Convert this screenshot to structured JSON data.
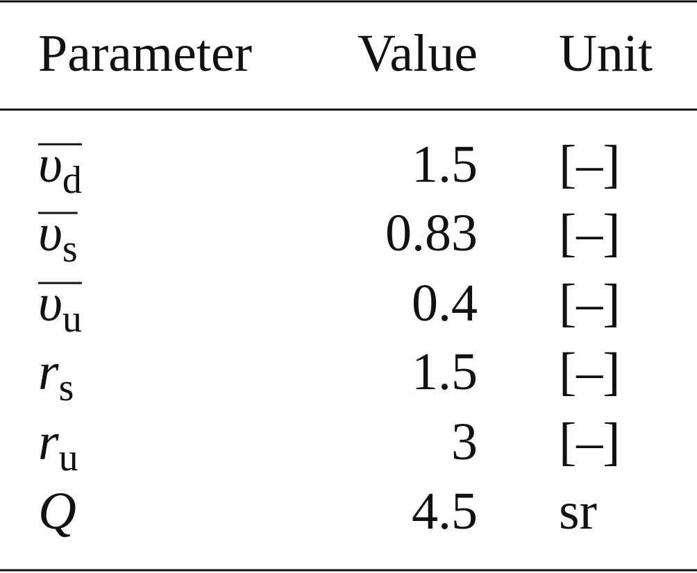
{
  "table": {
    "header": [
      "Parameter",
      "Value",
      "Unit"
    ],
    "rows": [
      [
        {
          "symbol": "υ",
          "subscript": "d",
          "overline": true
        },
        "1.5",
        "[–]"
      ],
      [
        {
          "symbol": "υ",
          "subscript": "s",
          "overline": true
        },
        "0.83",
        "[–]"
      ],
      [
        {
          "symbol": "υ",
          "subscript": "u",
          "overline": true
        },
        "0.4",
        "[–]"
      ],
      [
        {
          "symbol": "r",
          "subscript": "s",
          "overline": false
        },
        "1.5",
        "[–]"
      ],
      [
        {
          "symbol": "r",
          "subscript": "u",
          "overline": false
        },
        "3",
        "[–]"
      ],
      [
        {
          "symbol": "Q",
          "overline": false
        },
        "4.5",
        "sr"
      ]
    ]
  }
}
